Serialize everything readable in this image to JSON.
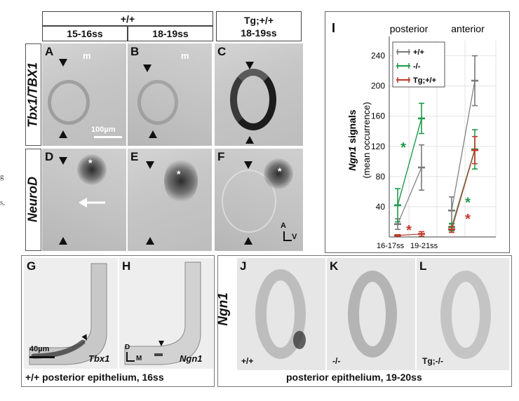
{
  "margin_fragments": [
    "g",
    "s,"
  ],
  "headers": {
    "wt": "+/+",
    "stage_a": "15-16ss",
    "stage_b": "18-19ss",
    "tg": "Tg;+/+",
    "stage_c": "18-19ss"
  },
  "row_labels": {
    "top": "Tbx1/TBX1",
    "bottom": "NeuroD"
  },
  "panels": {
    "A": "A",
    "B": "B",
    "C": "C",
    "D": "D",
    "E": "E",
    "F": "F",
    "G": "G",
    "H": "H",
    "I": "I",
    "J": "J",
    "K": "K",
    "L": "L"
  },
  "markers": {
    "m": "m",
    "star": "*"
  },
  "scale_bars": {
    "top": "100µm",
    "bottom": "40µm"
  },
  "orientation": {
    "av_a": "A",
    "av_v": "V",
    "dm_d": "D",
    "dm_m": "M"
  },
  "gh": {
    "g_gene": "Tbx1",
    "h_gene": "Ngn1",
    "caption": "+/+ posterior epithelium, 16ss"
  },
  "jkl": {
    "row_label": "Ngn1",
    "j_geno": "+/+",
    "k_geno": "-/-",
    "l_geno": "Tg;-/-",
    "caption": "posterior epithelium, 19-20ss"
  },
  "colors": {
    "wt": "#7a7a7a",
    "ko": "#1f9a4a",
    "tg": "#c0392b",
    "grid": "#e3e3e3"
  },
  "chart_data": {
    "type": "line",
    "ylabel": "Ngn1 signals (mean occurrence)",
    "ylabel_gene": "Ngn1",
    "ylabel_rest": "signals",
    "ylabel_sub": "(mean occurrence)",
    "yticks": [
      40,
      80,
      120,
      160,
      200,
      240
    ],
    "ylim": [
      0,
      260
    ],
    "region_labels": [
      "posterior",
      "anterior"
    ],
    "x_labels": [
      "16-17ss",
      "19-21ss"
    ],
    "grid": true,
    "legend_position": "top-left",
    "series": [
      {
        "name": "+/+",
        "color": "#7a7a7a",
        "posterior": [
          {
            "stage": "16-17ss",
            "y": 17,
            "err": 7
          },
          {
            "stage": "19-21ss",
            "y": 92,
            "err": 30
          }
        ],
        "anterior": [
          {
            "stage": "16-17ss",
            "y": 35,
            "err": 18
          },
          {
            "stage": "19-21ss",
            "y": 207,
            "err": 33
          }
        ]
      },
      {
        "name": "-/-",
        "color": "#1f9a4a",
        "posterior": [
          {
            "stage": "16-17ss",
            "y": 42,
            "err": 22
          },
          {
            "stage": "19-21ss",
            "y": 157,
            "err": 20
          }
        ],
        "anterior": [
          {
            "stage": "16-17ss",
            "y": 13,
            "err": 5
          },
          {
            "stage": "19-21ss",
            "y": 116,
            "err": 26
          }
        ]
      },
      {
        "name": "Tg;+/+",
        "color": "#c0392b",
        "posterior": [
          {
            "stage": "16-17ss",
            "y": 2,
            "err": 1
          },
          {
            "stage": "19-21ss",
            "y": 4,
            "err": 3
          }
        ],
        "anterior": [
          {
            "stage": "16-17ss",
            "y": 10,
            "err": 4
          },
          {
            "stage": "19-21ss",
            "y": 115,
            "err": 18
          }
        ]
      }
    ],
    "annotations": [
      {
        "text": "*",
        "color": "#1f9a4a",
        "region": "posterior",
        "y": 120
      },
      {
        "text": "*",
        "color": "#c0392b",
        "region": "posterior",
        "y": 10
      },
      {
        "text": "*",
        "color": "#1f9a4a",
        "region": "anterior",
        "y": 47
      },
      {
        "text": "*",
        "color": "#c0392b",
        "region": "anterior",
        "y": 25
      }
    ]
  }
}
